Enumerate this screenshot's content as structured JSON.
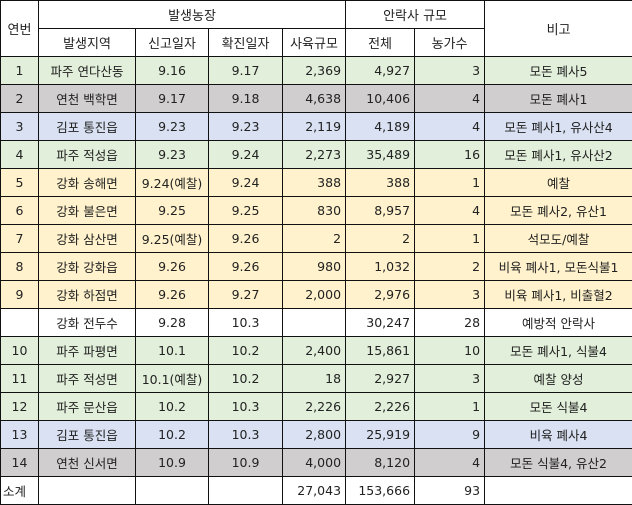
{
  "headers": {
    "no": "연번",
    "farm_group": "발생농장",
    "cull_group": "안락사 규모",
    "note": "비고",
    "region": "발생지역",
    "report_date": "신고일자",
    "confirm_date": "확진일자",
    "herd_size": "사육규모",
    "cull_total": "전체",
    "cull_farms": "농가수"
  },
  "colors": {
    "green": "#e2efda",
    "gray": "#d0cece",
    "blue": "#d9e1f2",
    "yellow": "#fff2cc",
    "white": "#ffffff"
  },
  "rows": [
    {
      "no": "1",
      "region": "파주 연다산동",
      "report": "9.16",
      "confirm": "9.17",
      "herd": "2,369",
      "total": "4,927",
      "farms": "3",
      "note": "모돈 폐사5",
      "color": "green"
    },
    {
      "no": "2",
      "region": "연천 백학면",
      "report": "9.17",
      "confirm": "9.18",
      "herd": "4,638",
      "total": "10,406",
      "farms": "4",
      "note": "모돈 폐사1",
      "color": "gray"
    },
    {
      "no": "3",
      "region": "김포 통진읍",
      "report": "9.23",
      "confirm": "9.23",
      "herd": "2,119",
      "total": "4,189",
      "farms": "4",
      "note": "모돈 폐사1, 유사산4",
      "color": "blue"
    },
    {
      "no": "4",
      "region": "파주 적성읍",
      "report": "9.23",
      "confirm": "9.24",
      "herd": "2,273",
      "total": "35,489",
      "farms": "16",
      "note": "모돈 폐사1, 유사산2",
      "color": "green"
    },
    {
      "no": "5",
      "region": "강화 송해면",
      "report": "9.24(예찰)",
      "confirm": "9.24",
      "herd": "388",
      "total": "388",
      "farms": "1",
      "note": "예찰",
      "color": "yellow"
    },
    {
      "no": "6",
      "region": "강화 불은면",
      "report": "9.25",
      "confirm": "9.25",
      "herd": "830",
      "total": "8,957",
      "farms": "4",
      "note": "모돈 폐사2, 유산1",
      "color": "yellow"
    },
    {
      "no": "7",
      "region": "강화 삼산면",
      "report": "9.25(예찰)",
      "confirm": "9.26",
      "herd": "2",
      "total": "2",
      "farms": "1",
      "note": "석모도/예찰",
      "color": "yellow"
    },
    {
      "no": "8",
      "region": "강화 강화읍",
      "report": "9.26",
      "confirm": "9.26",
      "herd": "980",
      "total": "1,032",
      "farms": "2",
      "note": "비육 폐사1, 모돈식불1",
      "color": "yellow"
    },
    {
      "no": "9",
      "region": "강화 하점면",
      "report": "9.26",
      "confirm": "9.27",
      "herd": "2,000",
      "total": "2,976",
      "farms": "3",
      "note": "비육 폐사1, 비출혈2",
      "color": "yellow"
    },
    {
      "no": "",
      "region": "강화 전두수",
      "report": "9.28",
      "confirm": "10.3",
      "herd": "",
      "total": "30,247",
      "farms": "28",
      "note": "예방적 안락사",
      "color": "white"
    },
    {
      "no": "10",
      "region": "파주 파평면",
      "report": "10.1",
      "confirm": "10.2",
      "herd": "2,400",
      "total": "15,861",
      "farms": "10",
      "note": "모돈 폐사1, 식불4",
      "color": "green"
    },
    {
      "no": "11",
      "region": "파주 적성면",
      "report": "10.1(예찰)",
      "confirm": "10.2",
      "herd": "18",
      "total": "2,927",
      "farms": "3",
      "note": "예찰 양성",
      "color": "green"
    },
    {
      "no": "12",
      "region": "파주 문산읍",
      "report": "10.2",
      "confirm": "10.3",
      "herd": "2,226",
      "total": "2,226",
      "farms": "1",
      "note": "모돈 식불4",
      "color": "green"
    },
    {
      "no": "13",
      "region": "김포 통진읍",
      "report": "10.2",
      "confirm": "10.3",
      "herd": "2,800",
      "total": "25,919",
      "farms": "9",
      "note": "비육 폐사4",
      "color": "blue"
    },
    {
      "no": "14",
      "region": "연천 신서면",
      "report": "10.9",
      "confirm": "10.9",
      "herd": "4,000",
      "total": "8,120",
      "farms": "4",
      "note": "모돈 식불4, 유산2",
      "color": "gray"
    }
  ],
  "subtotal": {
    "label": "소계",
    "region": "",
    "report": "",
    "confirm": "",
    "herd": "27,043",
    "total": "153,666",
    "farms": "93",
    "note": ""
  }
}
